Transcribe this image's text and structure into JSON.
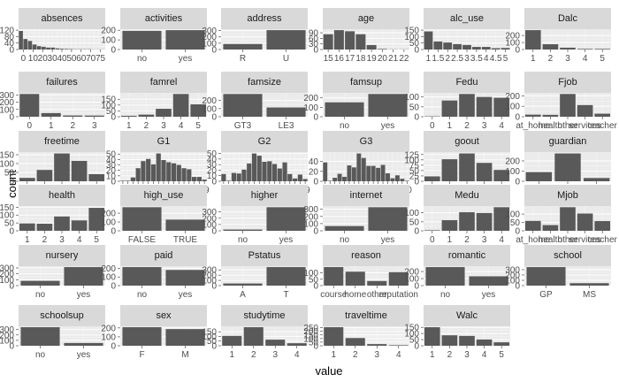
{
  "chart_data": {
    "type": "bar",
    "title": "",
    "xlabel": "value",
    "ylabel": "count",
    "layout": {
      "ncol": 6,
      "nrow": 6
    },
    "facets": [
      {
        "name": "absences",
        "categories": [
          "0",
          "2",
          "4",
          "6",
          "8",
          "10",
          "12",
          "14",
          "16",
          "18",
          "20",
          "22",
          "24",
          "26",
          "28",
          "30",
          "40",
          "56",
          "75"
        ],
        "values": [
          115,
          65,
          53,
          31,
          21,
          17,
          12,
          12,
          7,
          5,
          4,
          3,
          2,
          2,
          2,
          2,
          1,
          1,
          1
        ],
        "yticks": [
          0,
          40,
          80,
          120
        ],
        "xticks": [
          "0",
          "10",
          "20",
          "30",
          "40",
          "50",
          "60",
          "70",
          "75"
        ]
      },
      {
        "name": "activities",
        "categories": [
          "no",
          "yes"
        ],
        "values": [
          194,
          201
        ],
        "yticks": [
          0,
          100,
          200
        ]
      },
      {
        "name": "address",
        "categories": [
          "R",
          "U"
        ],
        "values": [
          88,
          307
        ],
        "yticks": [
          0,
          100,
          200,
          300
        ]
      },
      {
        "name": "age",
        "categories": [
          "15",
          "16",
          "17",
          "18",
          "19",
          "20",
          "21",
          "22"
        ],
        "values": [
          82,
          104,
          98,
          82,
          24,
          3,
          1,
          1
        ],
        "yticks": [
          0,
          30,
          60,
          90
        ],
        "xticks": [
          "15",
          "16",
          "17",
          "18",
          "19",
          "20",
          "21",
          "22"
        ]
      },
      {
        "name": "alc_use",
        "categories": [
          "1",
          "1.5",
          "2",
          "2.5",
          "3",
          "3.5",
          "4",
          "4.5",
          "5"
        ],
        "values": [
          140,
          62,
          54,
          42,
          35,
          20,
          20,
          10,
          12
        ],
        "yticks": [
          0,
          50,
          100,
          150
        ],
        "xticks": [
          "1",
          "1.5",
          "2",
          "2.5",
          "3",
          "3.5",
          "4",
          "4.5",
          "5"
        ]
      },
      {
        "name": "Dalc",
        "categories": [
          "1",
          "2",
          "3",
          "4",
          "5"
        ],
        "values": [
          276,
          75,
          26,
          9,
          9
        ],
        "yticks": [
          0,
          100,
          200
        ],
        "xticks": [
          "1",
          "2",
          "3",
          "4",
          "5"
        ]
      },
      {
        "name": "failures",
        "categories": [
          "0",
          "1",
          "2",
          "3"
        ],
        "values": [
          312,
          50,
          17,
          16
        ],
        "yticks": [
          0,
          100,
          200,
          300
        ]
      },
      {
        "name": "famrel",
        "categories": [
          "1",
          "2",
          "3",
          "4",
          "5"
        ],
        "values": [
          8,
          18,
          68,
          195,
          106
        ],
        "yticks": [
          0,
          50,
          100,
          150
        ]
      },
      {
        "name": "famsize",
        "categories": [
          "GT3",
          "LE3"
        ],
        "values": [
          281,
          114
        ],
        "yticks": [
          0,
          100,
          200
        ]
      },
      {
        "name": "famsup",
        "categories": [
          "no",
          "yes"
        ],
        "values": [
          153,
          242
        ],
        "yticks": [
          0,
          100,
          200
        ]
      },
      {
        "name": "Fedu",
        "categories": [
          "0",
          "1",
          "2",
          "3",
          "4"
        ],
        "values": [
          2,
          82,
          115,
          100,
          96
        ],
        "yticks": [
          0,
          50,
          100
        ]
      },
      {
        "name": "Fjob",
        "categories": [
          "at_home",
          "health",
          "other",
          "services",
          "teacher"
        ],
        "values": [
          20,
          18,
          217,
          111,
          29
        ],
        "yticks": [
          0,
          100,
          200
        ]
      },
      {
        "name": "freetime",
        "categories": [
          "1",
          "2",
          "3",
          "4",
          "5"
        ],
        "values": [
          19,
          64,
          157,
          115,
          40
        ],
        "yticks": [
          0,
          50,
          100,
          150
        ]
      },
      {
        "name": "G1",
        "categories": [
          "3",
          "4",
          "5",
          "6",
          "7",
          "8",
          "9",
          "10",
          "11",
          "12",
          "13",
          "14",
          "15",
          "16",
          "17",
          "18",
          "19"
        ],
        "values": [
          1,
          1,
          7,
          24,
          37,
          41,
          31,
          51,
          39,
          35,
          33,
          30,
          24,
          22,
          8,
          8,
          3
        ],
        "yticks": [
          0,
          10,
          20,
          30,
          40,
          50
        ],
        "xticks": [
          "3",
          "4",
          "5",
          "6",
          "7",
          "8",
          "9",
          "10",
          "11",
          "12",
          "13",
          "14",
          "15",
          "16",
          "17",
          "18",
          "19"
        ]
      },
      {
        "name": "G2",
        "categories": [
          "0",
          "4",
          "5",
          "6",
          "7",
          "8",
          "9",
          "10",
          "11",
          "12",
          "13",
          "14",
          "15",
          "16",
          "17",
          "18",
          "19"
        ],
        "values": [
          13,
          1,
          15,
          14,
          21,
          32,
          50,
          46,
          35,
          36,
          31,
          23,
          34,
          13,
          5,
          12,
          4
        ],
        "yticks": [
          0,
          10,
          20,
          30,
          40,
          50
        ],
        "xticks": [
          "0",
          "4",
          "5",
          "6",
          "7",
          "8",
          "9",
          "10",
          "11",
          "12",
          "13",
          "14",
          "15",
          "16",
          "17",
          "18",
          "19"
        ]
      },
      {
        "name": "G3",
        "categories": [
          "0",
          "4",
          "5",
          "6",
          "7",
          "8",
          "9",
          "10",
          "11",
          "12",
          "13",
          "14",
          "15",
          "16",
          "17",
          "18",
          "19",
          "20"
        ],
        "values": [
          38,
          1,
          7,
          15,
          9,
          32,
          28,
          56,
          47,
          31,
          31,
          27,
          33,
          16,
          6,
          12,
          5,
          1
        ],
        "yticks": [
          0,
          20,
          40
        ],
        "xticks": [
          "0",
          "4",
          "5",
          "6",
          "7",
          "8",
          "9",
          "10",
          "11",
          "12",
          "13",
          "14",
          "15",
          "16",
          "17",
          "18",
          "19",
          "20"
        ]
      },
      {
        "name": "goout",
        "categories": [
          "1",
          "2",
          "3",
          "4",
          "5"
        ],
        "values": [
          23,
          103,
          130,
          86,
          53
        ],
        "yticks": [
          0,
          25,
          50,
          75,
          100,
          125
        ]
      },
      {
        "name": "guardian",
        "categories": [
          "father",
          "mother",
          "other"
        ],
        "values": [
          90,
          273,
          32
        ],
        "yticks": [
          0,
          100,
          200
        ]
      },
      {
        "name": "health",
        "categories": [
          "1",
          "2",
          "3",
          "4",
          "5"
        ],
        "values": [
          47,
          45,
          91,
          66,
          146
        ],
        "yticks": [
          0,
          50,
          100,
          150
        ]
      },
      {
        "name": "high_use",
        "categories": [
          "FALSE",
          "TRUE"
        ],
        "values": [
          268,
          127
        ],
        "yticks": [
          0,
          100,
          200
        ]
      },
      {
        "name": "higher",
        "categories": [
          "no",
          "yes"
        ],
        "values": [
          20,
          375
        ],
        "yticks": [
          0,
          100,
          200,
          300
        ]
      },
      {
        "name": "internet",
        "categories": [
          "no",
          "yes"
        ],
        "values": [
          66,
          329
        ],
        "yticks": [
          0,
          100,
          200,
          300
        ]
      },
      {
        "name": "Medu",
        "categories": [
          "0",
          "1",
          "2",
          "3",
          "4"
        ],
        "values": [
          3,
          59,
          103,
          99,
          131
        ],
        "yticks": [
          0,
          50,
          100
        ]
      },
      {
        "name": "Mjob",
        "categories": [
          "at_home",
          "health",
          "other",
          "services",
          "teacher"
        ],
        "values": [
          59,
          34,
          141,
          103,
          58
        ],
        "yticks": [
          0,
          50,
          100
        ]
      },
      {
        "name": "nursery",
        "categories": [
          "no",
          "yes"
        ],
        "values": [
          81,
          314
        ],
        "yticks": [
          0,
          100,
          200,
          300
        ]
      },
      {
        "name": "paid",
        "categories": [
          "no",
          "yes"
        ],
        "values": [
          214,
          181
        ],
        "yticks": [
          0,
          100,
          200
        ]
      },
      {
        "name": "Pstatus",
        "categories": [
          "A",
          "T"
        ],
        "values": [
          41,
          354
        ],
        "yticks": [
          0,
          100,
          200,
          300
        ]
      },
      {
        "name": "reason",
        "categories": [
          "course",
          "home",
          "other",
          "reputation"
        ],
        "values": [
          145,
          109,
          36,
          105
        ],
        "yticks": [
          0,
          50,
          100
        ]
      },
      {
        "name": "romantic",
        "categories": [
          "no",
          "yes"
        ],
        "values": [
          263,
          132
        ],
        "yticks": [
          0,
          100,
          200
        ]
      },
      {
        "name": "school",
        "categories": [
          "GP",
          "MS"
        ],
        "values": [
          349,
          46
        ],
        "yticks": [
          0,
          100,
          200,
          300
        ]
      },
      {
        "name": "schoolsup",
        "categories": [
          "no",
          "yes"
        ],
        "values": [
          344,
          51
        ],
        "yticks": [
          0,
          100,
          200,
          300
        ]
      },
      {
        "name": "sex",
        "categories": [
          "F",
          "M"
        ],
        "values": [
          208,
          187
        ],
        "yticks": [
          0,
          100,
          200
        ]
      },
      {
        "name": "studytime",
        "categories": [
          "1",
          "2",
          "3",
          "4"
        ],
        "values": [
          105,
          198,
          65,
          27
        ],
        "yticks": [
          0,
          50,
          100,
          150
        ]
      },
      {
        "name": "traveltime",
        "categories": [
          "1",
          "2",
          "3",
          "4"
        ],
        "values": [
          257,
          107,
          23,
          8
        ],
        "yticks": [
          0,
          50,
          100,
          150,
          200,
          250
        ]
      },
      {
        "name": "Walc",
        "categories": [
          "1",
          "2",
          "3",
          "4",
          "5"
        ],
        "values": [
          151,
          85,
          80,
          51,
          28
        ],
        "yticks": [
          0,
          50,
          100,
          150
        ]
      }
    ]
  }
}
